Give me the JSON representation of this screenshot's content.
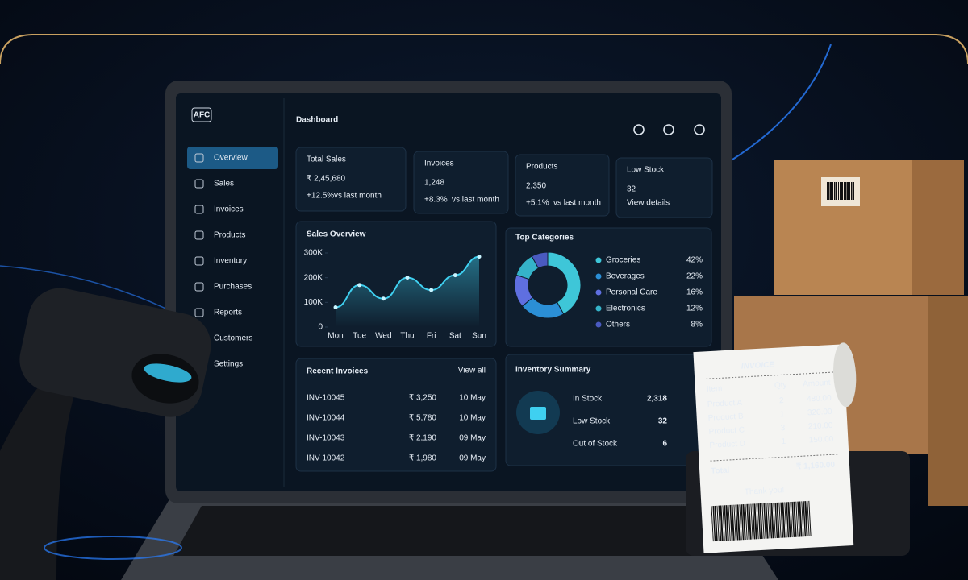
{
  "header": {
    "title": "Dashboard",
    "logo": "AFC"
  },
  "sidebar": {
    "items": [
      "Overview",
      "Sales",
      "Invoices",
      "Products",
      "Inventory",
      "Purchases",
      "Reports",
      "Customers",
      "Settings"
    ],
    "active": 0
  },
  "stats": [
    {
      "label": "Total Sales",
      "value": "₹ 2,45,680",
      "change": "+12.5%",
      "note": "vs last month"
    },
    {
      "label": "Invoices",
      "value": "1,248",
      "change": "+8.3%",
      "note": "vs last month"
    },
    {
      "label": "Products",
      "value": "2,350",
      "change": "+5.1%",
      "note": "vs last month"
    },
    {
      "label": "Low Stock",
      "value": "32",
      "link": "View details"
    }
  ],
  "chart_data": [
    {
      "type": "line",
      "title": "Sales Overview",
      "categories": [
        "Mon",
        "Tue",
        "Wed",
        "Thu",
        "Fri",
        "Sat",
        "Sun"
      ],
      "values": [
        80000,
        170000,
        115000,
        200000,
        150000,
        210000,
        285000
      ],
      "color": "#3fd0f0",
      "ylim": [
        0,
        300000
      ],
      "yticks": [
        0,
        {
          "value": 100000,
          "label": "100K"
        },
        {
          "value": 200000,
          "label": "200K"
        },
        {
          "value": 300000,
          "label": "300K"
        }
      ]
    },
    {
      "type": "pie",
      "title": "Top Categories",
      "donut": true,
      "categories": [
        "Groceries",
        "Beverages",
        "Personal Care",
        "Electronics",
        "Others"
      ],
      "values": [
        42,
        22,
        16,
        12,
        8
      ],
      "value_labels": [
        "42%",
        "22%",
        "16%",
        "12%",
        "8%"
      ],
      "colors": [
        "#3ec6d8",
        "#2b8fd6",
        "#5f6fe0",
        "#35b3c9",
        "#4a5ac0"
      ]
    }
  ],
  "recent_invoices": {
    "title": "Recent Invoices",
    "link": "View all",
    "rows": [
      [
        "INV-10045",
        "₹ 3,250",
        "10 May"
      ],
      [
        "INV-10044",
        "₹ 5,780",
        "10 May"
      ],
      [
        "INV-10043",
        "₹ 2,190",
        "09 May"
      ],
      [
        "INV-10042",
        "₹ 1,980",
        "09 May"
      ]
    ]
  },
  "inventory_summary": {
    "title": "Inventory Summary",
    "rows": [
      [
        "In Stock",
        "2,318"
      ],
      [
        "Low Stock",
        "32"
      ],
      [
        "Out of Stock",
        "6"
      ]
    ]
  },
  "receipt": {
    "title": "INVOICE",
    "columns": [
      "Item",
      "Qty",
      "Amount"
    ],
    "rows": [
      [
        "Product A",
        "2",
        "480.00"
      ],
      [
        "Product B",
        "1",
        "320.00"
      ],
      [
        "Product C",
        "3",
        "210.00"
      ],
      [
        "Product D",
        "1",
        "150.00"
      ]
    ],
    "total_label": "Total",
    "total": "₹ 1,160.00",
    "footer": "Thank you!"
  }
}
